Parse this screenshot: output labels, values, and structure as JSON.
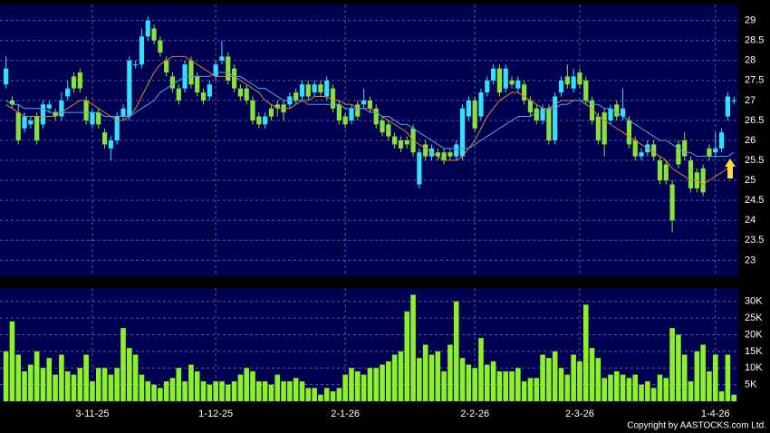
{
  "chart_data": {
    "type": "candlestick",
    "categories": [
      null,
      null,
      null,
      null,
      null,
      null,
      null,
      null,
      null,
      null,
      null,
      null,
      null,
      null,
      "3-11-25",
      null,
      null,
      null,
      null,
      null,
      null,
      null,
      null,
      null,
      null,
      null,
      null,
      null,
      null,
      null,
      null,
      null,
      null,
      null,
      "1-12-25",
      null,
      null,
      null,
      null,
      null,
      null,
      null,
      null,
      null,
      null,
      null,
      null,
      null,
      null,
      null,
      null,
      null,
      null,
      null,
      null,
      "2-1-26",
      null,
      null,
      null,
      null,
      null,
      null,
      null,
      null,
      null,
      null,
      null,
      null,
      null,
      null,
      null,
      null,
      null,
      null,
      null,
      null,
      "2-2-26",
      null,
      null,
      null,
      null,
      null,
      null,
      null,
      null,
      null,
      null,
      null,
      null,
      null,
      null,
      null,
      null,
      "2-3-26",
      null,
      null,
      null,
      null,
      null,
      null,
      null,
      null,
      null,
      null,
      null,
      null,
      null,
      null,
      null,
      null,
      null,
      null,
      null,
      null,
      null,
      "1-4-26",
      null,
      null,
      null
    ],
    "candles": {
      "up_color": "#33e0ff",
      "down_color": "#88e23a",
      "open": [
        27.4,
        27.0,
        26.7,
        26.3,
        26.4,
        26.6,
        26.4,
        26.8,
        26.7,
        26.6,
        27.1,
        27.6,
        27.7,
        27.0,
        26.4,
        26.7,
        26.2,
        25.8,
        26.0,
        26.6,
        26.6,
        27.9,
        27.9,
        28.6,
        28.8,
        28.5,
        28.0,
        27.6,
        27.3,
        27.3,
        28.0,
        27.6,
        27.2,
        27.1,
        27.6,
        28.0,
        28.1,
        27.8,
        27.3,
        27.3,
        27.0,
        26.6,
        26.4,
        26.8,
        26.9,
        26.9,
        26.9,
        27.2,
        27.1,
        27.4,
        27.2,
        27.4,
        27.1,
        27.3,
        26.9,
        26.6,
        26.5,
        26.9,
        26.9,
        27.0,
        26.8,
        26.5,
        26.4,
        26.1,
        26.0,
        26.0,
        26.3,
        24.9,
        25.9,
        25.6,
        25.7,
        25.7,
        25.7,
        25.6,
        25.6,
        26.6,
        27.0,
        26.6,
        27.2,
        27.5,
        27.8,
        27.3,
        27.5,
        27.3,
        27.4,
        27.0,
        26.8,
        26.5,
        26.8,
        26.0,
        27.2,
        27.6,
        27.3,
        27.7,
        27.5,
        27.0,
        26.6,
        26.7,
        26.5,
        26.9,
        26.6,
        26.5,
        26.0,
        25.6,
        25.7,
        25.9,
        25.5,
        25.4,
        24.9,
        25.9,
        26.0,
        25.5,
        25.2,
        25.3,
        25.8,
        25.7,
        25.8,
        26.6,
        27.0
      ],
      "high": [
        28.1,
        27.1,
        26.9,
        26.7,
        26.6,
        26.7,
        27.0,
        27.0,
        26.8,
        27.2,
        27.5,
        27.7,
        27.8,
        27.1,
        26.8,
        26.8,
        26.3,
        26.1,
        26.7,
        26.9,
        28.1,
        28.0,
        28.8,
        29.1,
        28.9,
        28.6,
        28.1,
        27.7,
        27.4,
        28.0,
        28.1,
        27.7,
        27.3,
        27.5,
        28.0,
        28.5,
        28.2,
        27.9,
        27.4,
        27.4,
        27.1,
        26.7,
        26.7,
        26.9,
        27.0,
        27.0,
        27.2,
        27.3,
        27.5,
        27.5,
        27.5,
        27.5,
        27.6,
        27.4,
        27.0,
        26.7,
        26.9,
        27.0,
        27.3,
        27.1,
        26.9,
        26.6,
        26.5,
        26.2,
        26.1,
        26.1,
        26.4,
        25.8,
        26.0,
        25.9,
        25.8,
        25.8,
        25.8,
        26.0,
        26.9,
        27.1,
        27.1,
        27.3,
        27.6,
        27.9,
        27.9,
        27.9,
        27.6,
        27.6,
        27.5,
        27.1,
        26.9,
        26.9,
        26.9,
        27.2,
        27.6,
        27.9,
        27.8,
        27.8,
        27.6,
        27.1,
        26.7,
        26.8,
        26.9,
        27.0,
        27.3,
        26.6,
        26.1,
        25.8,
        26.0,
        26.0,
        25.6,
        25.5,
        25.0,
        26.0,
        26.2,
        25.6,
        25.3,
        25.4,
        25.9,
        26.2,
        26.3,
        27.2,
        27.1
      ],
      "low": [
        27.3,
        26.8,
        25.9,
        26.2,
        26.3,
        25.9,
        26.3,
        26.7,
        26.5,
        26.5,
        27.0,
        27.2,
        27.2,
        26.4,
        26.3,
        26.3,
        25.8,
        25.5,
        25.9,
        26.5,
        26.5,
        27.8,
        27.8,
        28.5,
        28.4,
        28.1,
        27.6,
        27.2,
        26.9,
        27.2,
        27.3,
        27.1,
        26.9,
        27.0,
        27.5,
        27.9,
        27.4,
        27.2,
        27.0,
        26.9,
        26.4,
        26.3,
        26.3,
        26.5,
        26.6,
        26.5,
        26.8,
        26.9,
        27.0,
        27.0,
        27.1,
        27.1,
        27.0,
        26.7,
        26.4,
        26.3,
        26.4,
        26.5,
        26.8,
        26.7,
        26.3,
        26.1,
        26.0,
        25.8,
        25.7,
        25.8,
        25.6,
        24.8,
        25.5,
        25.5,
        25.5,
        25.4,
        25.5,
        25.5,
        25.5,
        26.5,
        26.2,
        26.5,
        27.1,
        27.4,
        27.1,
        27.2,
        27.3,
        27.2,
        26.9,
        26.6,
        26.4,
        26.4,
        25.9,
        25.9,
        27.1,
        27.3,
        27.2,
        27.3,
        26.9,
        26.4,
        25.9,
        25.6,
        26.4,
        26.5,
        26.5,
        25.8,
        25.5,
        25.5,
        25.6,
        25.5,
        24.9,
        24.9,
        23.7,
        25.3,
        25.5,
        24.7,
        24.7,
        24.6,
        25.5,
        25.6,
        25.7,
        26.5,
        26.9
      ],
      "close": [
        27.8,
        26.9,
        26.0,
        26.6,
        26.5,
        26.0,
        26.9,
        26.9,
        26.6,
        27.0,
        27.3,
        27.3,
        27.3,
        26.5,
        26.7,
        26.4,
        25.9,
        26.0,
        26.6,
        26.8,
        28.0,
        27.9,
        28.6,
        29.0,
        28.5,
        28.2,
        27.7,
        27.3,
        27.0,
        27.9,
        27.4,
        27.2,
        27.0,
        27.4,
        27.9,
        28.1,
        27.5,
        27.3,
        27.1,
        27.0,
        26.5,
        26.4,
        26.6,
        26.6,
        26.8,
        26.7,
        27.1,
        27.0,
        27.4,
        27.1,
        27.4,
        27.2,
        27.5,
        26.8,
        26.5,
        26.4,
        26.8,
        26.6,
        27.0,
        26.8,
        26.4,
        26.2,
        26.1,
        25.9,
        25.8,
        25.9,
        25.7,
        25.7,
        25.6,
        25.8,
        25.6,
        25.5,
        25.6,
        25.9,
        26.8,
        27.0,
        26.3,
        27.2,
        27.5,
        27.8,
        27.2,
        27.8,
        27.4,
        27.5,
        27.0,
        26.7,
        26.5,
        26.8,
        26.0,
        27.1,
        27.5,
        27.4,
        27.6,
        27.4,
        27.0,
        26.5,
        26.0,
        25.9,
        26.8,
        26.6,
        26.8,
        25.9,
        25.6,
        25.7,
        25.9,
        25.6,
        25.0,
        25.0,
        24.0,
        25.4,
        25.6,
        24.8,
        24.8,
        24.7,
        25.6,
        25.8,
        26.2,
        27.1,
        27.0
      ]
    },
    "moving_averages": [
      {
        "color": "#e0802a",
        "values": [
          26.9,
          26.8,
          26.7,
          26.6,
          26.6,
          26.6,
          26.6,
          26.6,
          26.6,
          26.7,
          26.8,
          26.9,
          27.0,
          27.0,
          26.9,
          26.8,
          26.7,
          26.6,
          26.5,
          26.5,
          26.6,
          26.8,
          27.1,
          27.4,
          27.7,
          27.9,
          28.0,
          28.1,
          28.1,
          28.1,
          28.0,
          27.9,
          27.8,
          27.7,
          27.6,
          27.6,
          27.6,
          27.6,
          27.5,
          27.4,
          27.3,
          27.2,
          27.0,
          26.9,
          26.8,
          26.8,
          26.8,
          26.9,
          27.0,
          27.0,
          27.1,
          27.1,
          27.1,
          27.0,
          27.0,
          26.9,
          26.9,
          26.8,
          26.8,
          26.8,
          26.7,
          26.6,
          26.5,
          26.4,
          26.3,
          26.2,
          26.0,
          25.9,
          25.8,
          25.7,
          25.6,
          25.5,
          25.5,
          25.5,
          25.6,
          25.8,
          26.0,
          26.3,
          26.6,
          26.8,
          27.0,
          27.1,
          27.2,
          27.2,
          27.1,
          27.0,
          26.9,
          26.8,
          26.8,
          26.9,
          27.0,
          27.0,
          27.0,
          27.0,
          26.9,
          26.8,
          26.6,
          26.5,
          26.4,
          26.3,
          26.2,
          26.1,
          26.0,
          25.9,
          25.8,
          25.7,
          25.6,
          25.5,
          25.3,
          25.2,
          25.1,
          25.0,
          25.0,
          24.9,
          25.0,
          25.1,
          25.2,
          25.3,
          25.4
        ]
      },
      {
        "color": "#4aa8e8",
        "values": [
          27.0,
          26.9,
          26.9,
          26.8,
          26.8,
          26.8,
          26.8,
          26.7,
          26.7,
          26.7,
          26.7,
          26.7,
          26.7,
          26.7,
          26.7,
          26.7,
          26.6,
          26.6,
          26.6,
          26.6,
          26.6,
          26.7,
          26.8,
          26.9,
          27.0,
          27.2,
          27.3,
          27.4,
          27.5,
          27.6,
          27.6,
          27.6,
          27.6,
          27.6,
          27.7,
          27.7,
          27.7,
          27.6,
          27.6,
          27.5,
          27.4,
          27.3,
          27.3,
          27.2,
          27.1,
          27.0,
          27.0,
          27.0,
          27.0,
          26.9,
          26.9,
          26.9,
          26.9,
          26.9,
          26.9,
          26.8,
          26.8,
          26.8,
          26.8,
          26.7,
          26.7,
          26.6,
          26.6,
          26.5,
          26.4,
          26.4,
          26.3,
          26.2,
          26.1,
          26.0,
          25.9,
          25.8,
          25.8,
          25.8,
          25.8,
          25.8,
          25.9,
          26.0,
          26.1,
          26.2,
          26.3,
          26.4,
          26.5,
          26.6,
          26.6,
          26.6,
          26.7,
          26.7,
          26.8,
          26.8,
          26.9,
          26.9,
          27.0,
          27.0,
          27.0,
          26.9,
          26.9,
          26.8,
          26.8,
          26.7,
          26.6,
          26.5,
          26.4,
          26.3,
          26.2,
          26.1,
          26.0,
          26.0,
          25.9,
          25.8,
          25.7,
          25.7,
          25.6,
          25.6,
          25.6,
          25.6,
          25.6,
          25.6,
          25.7
        ]
      }
    ],
    "ylim": [
      22.6,
      29.4
    ],
    "yticks": [
      23,
      23.5,
      24,
      24.5,
      25,
      25.5,
      26,
      26.5,
      27,
      27.5,
      28,
      28.5,
      29
    ],
    "grid": true,
    "volume": {
      "color": "#8cf02a",
      "ylim": [
        0,
        34000
      ],
      "yticks": [
        {
          "value": 5000,
          "label": "5K"
        },
        {
          "value": 10000,
          "label": "10K"
        },
        {
          "value": 15000,
          "label": "15K"
        },
        {
          "value": 20000,
          "label": "20K"
        },
        {
          "value": 25000,
          "label": "25K"
        },
        {
          "value": 30000,
          "label": "30K"
        }
      ],
      "values": [
        15000,
        24000,
        14000,
        9000,
        11000,
        15000,
        10000,
        13000,
        8000,
        14000,
        9000,
        8000,
        10000,
        14000,
        6000,
        10000,
        10000,
        8000,
        10000,
        22000,
        16000,
        14000,
        8000,
        6000,
        5000,
        4000,
        6000,
        7000,
        10000,
        6000,
        11000,
        9000,
        6000,
        5000,
        6000,
        6000,
        5000,
        6000,
        8000,
        10000,
        9000,
        6000,
        6000,
        5000,
        8000,
        6000,
        6000,
        7000,
        6000,
        4000,
        4000,
        2000,
        4000,
        3000,
        4000,
        8000,
        10000,
        9000,
        8000,
        10000,
        10000,
        11000,
        12000,
        14000,
        15000,
        27000,
        32000,
        13000,
        17000,
        14000,
        15000,
        9000,
        17000,
        30000,
        13000,
        11000,
        10000,
        19000,
        11000,
        12000,
        9000,
        9000,
        9000,
        10000,
        6000,
        7000,
        7000,
        14000,
        13000,
        15000,
        10000,
        8000,
        14000,
        12000,
        29000,
        16000,
        13000,
        7000,
        8000,
        9000,
        8000,
        7000,
        8000,
        5000,
        6000,
        4000,
        8000,
        7000,
        22000,
        20000,
        14000,
        6000,
        15000,
        17000,
        9000,
        14000,
        3000,
        14000,
        2000
      ]
    },
    "copyright": "Copyright by AASTOCKS.com Ltd."
  }
}
